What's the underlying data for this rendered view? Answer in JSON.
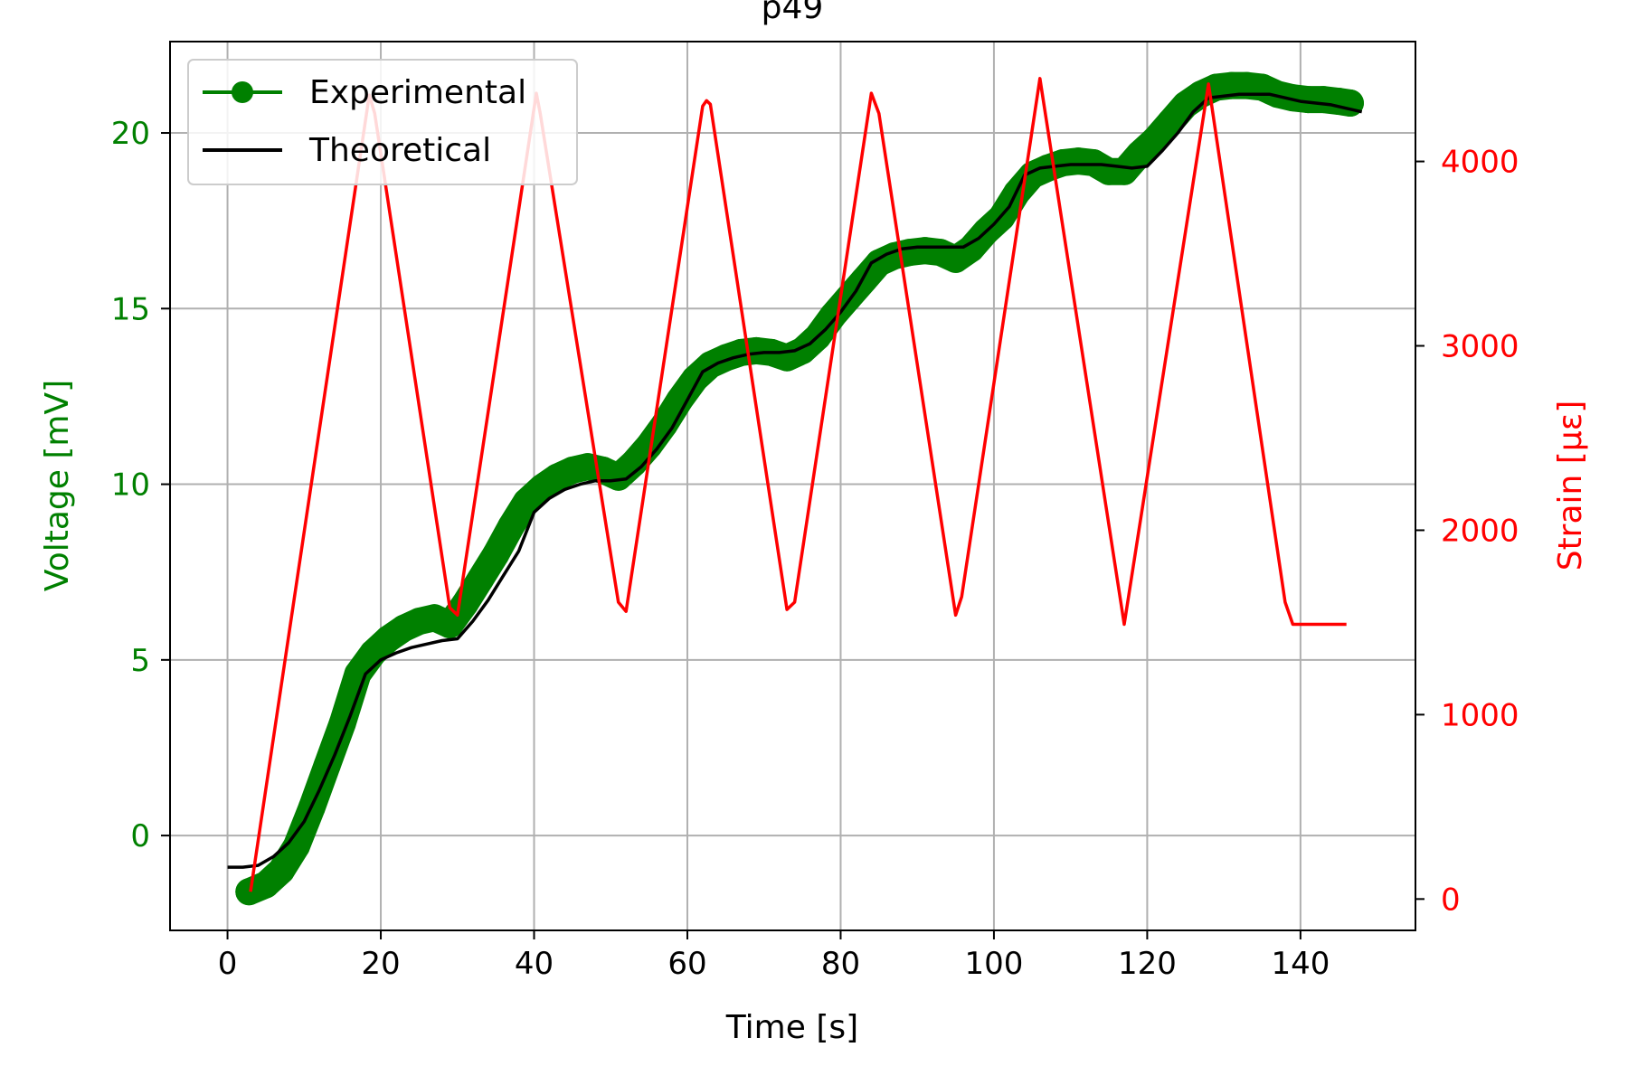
{
  "chart_data": {
    "type": "line",
    "title": "p49",
    "xlabel": "Time [s]",
    "ylabel_left": "Voltage [mV]",
    "ylabel_right": "Strain [με]",
    "xlim": [
      -7.5,
      155
    ],
    "ylim_left": [
      -2.7,
      22.6
    ],
    "ylim_right": [
      -170,
      4650
    ],
    "x_ticks": [
      0,
      20,
      40,
      60,
      80,
      100,
      120,
      140
    ],
    "y_left_ticks": [
      0,
      5,
      10,
      15,
      20
    ],
    "y_right_ticks": [
      0,
      1000,
      2000,
      3000,
      4000
    ],
    "grid": true,
    "legend_position": "top-left",
    "colors": {
      "experimental": "#008000",
      "theoretical": "#000000",
      "strain": "#ff0000",
      "grid": "#b0b0b0"
    },
    "series": [
      {
        "name": "Experimental",
        "axis": "left",
        "x": [
          2.8,
          5,
          7,
          9,
          11,
          13,
          15,
          17,
          19,
          21,
          23,
          25,
          27,
          29,
          31,
          33,
          35,
          37,
          39,
          41,
          43,
          45,
          47,
          49,
          51,
          53,
          55,
          57,
          59,
          61,
          63,
          65,
          67,
          69,
          71,
          73,
          75,
          77,
          79,
          81,
          83,
          85,
          87,
          89,
          91,
          93,
          95,
          97,
          99,
          101,
          103,
          105,
          107,
          109,
          111,
          113,
          115,
          117,
          119,
          121,
          123,
          125,
          127,
          129,
          131,
          133,
          135,
          137,
          139,
          141,
          143,
          145,
          146.5
        ],
        "values": [
          -1.6,
          -1.4,
          -1.0,
          -0.3,
          0.8,
          2.0,
          3.2,
          4.6,
          5.2,
          5.6,
          5.9,
          6.1,
          6.2,
          6.0,
          6.6,
          7.3,
          8.0,
          8.8,
          9.5,
          9.9,
          10.2,
          10.4,
          10.5,
          10.4,
          10.2,
          10.6,
          11.1,
          11.7,
          12.4,
          13.0,
          13.4,
          13.6,
          13.75,
          13.8,
          13.75,
          13.6,
          13.8,
          14.2,
          14.8,
          15.3,
          15.8,
          16.3,
          16.5,
          16.6,
          16.65,
          16.6,
          16.4,
          16.7,
          17.2,
          17.6,
          18.3,
          18.8,
          19.0,
          19.15,
          19.2,
          19.15,
          18.9,
          18.9,
          19.4,
          19.8,
          20.3,
          20.8,
          21.1,
          21.3,
          21.35,
          21.35,
          21.3,
          21.1,
          21.0,
          20.95,
          20.95,
          20.9,
          20.85
        ]
      },
      {
        "name": "Theoretical",
        "axis": "left",
        "x": [
          0,
          2,
          4,
          6,
          8,
          10,
          12,
          14,
          16,
          18,
          20,
          22,
          24,
          26,
          28,
          30,
          32,
          34,
          36,
          38,
          40,
          42,
          44,
          46,
          48,
          50,
          52,
          54,
          56,
          58,
          60,
          62,
          64,
          66,
          68,
          70,
          72,
          74,
          76,
          78,
          80,
          82,
          84,
          86,
          88,
          90,
          92,
          94,
          96,
          98,
          100,
          102,
          104,
          106,
          108,
          110,
          112,
          114,
          116,
          118,
          120,
          122,
          124,
          126,
          128,
          130,
          132,
          134,
          136,
          138,
          140,
          142,
          144,
          146,
          148
        ],
        "values": [
          -0.9,
          -0.9,
          -0.85,
          -0.6,
          -0.2,
          0.4,
          1.3,
          2.3,
          3.4,
          4.6,
          5.0,
          5.2,
          5.35,
          5.45,
          5.55,
          5.6,
          6.1,
          6.7,
          7.4,
          8.1,
          9.2,
          9.6,
          9.85,
          10.0,
          10.1,
          10.1,
          10.15,
          10.5,
          11.0,
          11.6,
          12.4,
          13.2,
          13.45,
          13.6,
          13.7,
          13.75,
          13.75,
          13.8,
          14.0,
          14.4,
          14.9,
          15.5,
          16.3,
          16.55,
          16.7,
          16.75,
          16.75,
          16.75,
          16.75,
          17.0,
          17.4,
          17.9,
          18.8,
          19.0,
          19.05,
          19.1,
          19.1,
          19.1,
          19.05,
          19.0,
          19.05,
          19.5,
          20.0,
          20.6,
          21.0,
          21.05,
          21.1,
          21.1,
          21.1,
          21.0,
          20.9,
          20.85,
          20.8,
          20.7,
          20.6
        ]
      },
      {
        "name": "Strain",
        "axis": "right",
        "x": [
          3,
          18.5,
          19.2,
          29,
          30,
          40.3,
          40.8,
          51,
          52,
          62,
          62.5,
          63,
          73,
          74,
          84,
          85,
          95,
          95.8,
          106,
          117,
          128,
          138,
          139,
          141,
          146
        ],
        "values": [
          40,
          4360,
          4260,
          1580,
          1540,
          4370,
          4260,
          1610,
          1560,
          4300,
          4330,
          4310,
          1570,
          1610,
          4370,
          4260,
          1540,
          1640,
          4450,
          1490,
          4420,
          1610,
          1490,
          1490,
          1490
        ]
      }
    ]
  }
}
